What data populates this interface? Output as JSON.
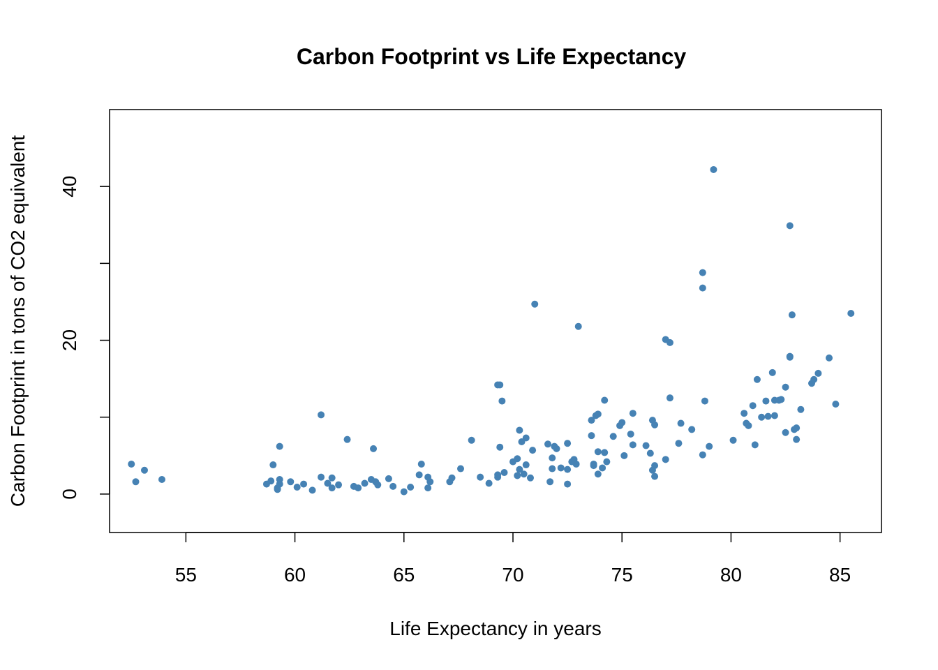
{
  "chart_data": {
    "type": "scatter",
    "title": "Carbon Footprint vs Life Expectancy",
    "xlabel": "Life Expectancy in years",
    "ylabel": "Carbon Footprint in tons of CO2 equivalent",
    "xlim": [
      51.5,
      86.9
    ],
    "ylim": [
      -5,
      50
    ],
    "xticks": [
      55,
      60,
      65,
      70,
      75,
      80,
      85
    ],
    "yticks": [
      0,
      20,
      40
    ],
    "yminor_ticks": [
      0,
      10,
      20,
      30,
      40
    ],
    "grid": false,
    "legend": "none",
    "point_color": "#4682B4",
    "points": [
      [
        52.5,
        3.9
      ],
      [
        52.7,
        1.6
      ],
      [
        53.1,
        3.1
      ],
      [
        53.9,
        1.9
      ],
      [
        58.7,
        1.3
      ],
      [
        58.9,
        1.7
      ],
      [
        59.0,
        3.8
      ],
      [
        59.2,
        0.8
      ],
      [
        59.2,
        0.6
      ],
      [
        59.3,
        6.2
      ],
      [
        59.3,
        1.9
      ],
      [
        59.3,
        1.3
      ],
      [
        59.8,
        1.6
      ],
      [
        60.1,
        0.9
      ],
      [
        60.4,
        1.3
      ],
      [
        60.8,
        0.5
      ],
      [
        61.2,
        10.3
      ],
      [
        61.2,
        2.2
      ],
      [
        61.5,
        1.4
      ],
      [
        61.7,
        2.1
      ],
      [
        61.7,
        0.8
      ],
      [
        62.0,
        1.2
      ],
      [
        62.4,
        7.1
      ],
      [
        62.7,
        1.0
      ],
      [
        62.9,
        0.8
      ],
      [
        63.2,
        1.4
      ],
      [
        63.5,
        1.9
      ],
      [
        63.6,
        5.9
      ],
      [
        63.7,
        1.6
      ],
      [
        63.8,
        1.2
      ],
      [
        64.3,
        2.0
      ],
      [
        64.5,
        1.0
      ],
      [
        65.0,
        0.3
      ],
      [
        65.3,
        0.9
      ],
      [
        65.7,
        2.5
      ],
      [
        65.8,
        3.9
      ],
      [
        66.1,
        0.8
      ],
      [
        66.1,
        2.2
      ],
      [
        66.2,
        1.6
      ],
      [
        67.1,
        1.6
      ],
      [
        67.2,
        2.1
      ],
      [
        67.6,
        3.3
      ],
      [
        68.1,
        7.0
      ],
      [
        68.5,
        2.2
      ],
      [
        68.9,
        1.4
      ],
      [
        69.3,
        2.2
      ],
      [
        69.3,
        2.5
      ],
      [
        69.3,
        14.2
      ],
      [
        69.4,
        14.2
      ],
      [
        69.4,
        6.1
      ],
      [
        69.5,
        12.1
      ],
      [
        69.6,
        2.8
      ],
      [
        70.0,
        4.2
      ],
      [
        70.2,
        2.4
      ],
      [
        70.2,
        4.6
      ],
      [
        70.3,
        8.3
      ],
      [
        70.3,
        3.2
      ],
      [
        70.4,
        6.8
      ],
      [
        70.5,
        2.6
      ],
      [
        70.6,
        7.3
      ],
      [
        70.6,
        3.8
      ],
      [
        70.8,
        2.1
      ],
      [
        70.9,
        5.7
      ],
      [
        71.0,
        24.7
      ],
      [
        71.6,
        6.5
      ],
      [
        71.7,
        1.6
      ],
      [
        71.8,
        4.7
      ],
      [
        71.8,
        3.3
      ],
      [
        71.9,
        6.2
      ],
      [
        72.0,
        5.9
      ],
      [
        72.2,
        3.4
      ],
      [
        72.5,
        1.3
      ],
      [
        72.5,
        3.2
      ],
      [
        72.5,
        6.6
      ],
      [
        72.7,
        4.2
      ],
      [
        72.8,
        4.5
      ],
      [
        72.9,
        3.9
      ],
      [
        73.0,
        21.8
      ],
      [
        73.6,
        7.6
      ],
      [
        73.6,
        9.6
      ],
      [
        73.7,
        3.9
      ],
      [
        73.7,
        3.7
      ],
      [
        73.8,
        10.2
      ],
      [
        73.9,
        2.6
      ],
      [
        73.9,
        5.5
      ],
      [
        73.9,
        10.4
      ],
      [
        74.1,
        3.4
      ],
      [
        74.2,
        5.4
      ],
      [
        74.2,
        12.2
      ],
      [
        74.3,
        4.2
      ],
      [
        74.6,
        7.5
      ],
      [
        74.9,
        8.9
      ],
      [
        75.0,
        9.3
      ],
      [
        75.1,
        5.0
      ],
      [
        75.4,
        7.8
      ],
      [
        75.5,
        10.5
      ],
      [
        75.5,
        6.4
      ],
      [
        76.1,
        6.3
      ],
      [
        76.3,
        5.3
      ],
      [
        76.4,
        9.6
      ],
      [
        76.4,
        3.1
      ],
      [
        76.5,
        2.3
      ],
      [
        76.5,
        9.0
      ],
      [
        76.5,
        3.7
      ],
      [
        77.0,
        20.1
      ],
      [
        77.0,
        4.5
      ],
      [
        77.2,
        12.5
      ],
      [
        77.2,
        19.7
      ],
      [
        77.6,
        6.6
      ],
      [
        77.7,
        9.2
      ],
      [
        78.2,
        8.4
      ],
      [
        78.7,
        28.8
      ],
      [
        78.7,
        26.8
      ],
      [
        78.7,
        5.1
      ],
      [
        78.8,
        12.1
      ],
      [
        79.0,
        6.2
      ],
      [
        79.2,
        42.2
      ],
      [
        80.1,
        7.0
      ],
      [
        80.6,
        10.5
      ],
      [
        80.7,
        9.2
      ],
      [
        80.8,
        8.9
      ],
      [
        81.0,
        11.5
      ],
      [
        81.1,
        6.4
      ],
      [
        81.2,
        14.9
      ],
      [
        81.4,
        10.0
      ],
      [
        81.6,
        12.1
      ],
      [
        81.7,
        10.1
      ],
      [
        81.9,
        15.8
      ],
      [
        82.0,
        12.2
      ],
      [
        82.0,
        10.2
      ],
      [
        82.2,
        12.2
      ],
      [
        82.3,
        12.3
      ],
      [
        82.5,
        13.9
      ],
      [
        82.5,
        8.0
      ],
      [
        82.7,
        34.9
      ],
      [
        82.7,
        17.8
      ],
      [
        82.7,
        17.9
      ],
      [
        82.8,
        23.3
      ],
      [
        82.9,
        8.4
      ],
      [
        83.0,
        8.6
      ],
      [
        83.0,
        7.1
      ],
      [
        83.2,
        11.0
      ],
      [
        83.7,
        14.4
      ],
      [
        83.8,
        14.9
      ],
      [
        84.0,
        15.7
      ],
      [
        84.5,
        17.7
      ],
      [
        84.8,
        11.7
      ],
      [
        85.5,
        23.5
      ]
    ]
  }
}
